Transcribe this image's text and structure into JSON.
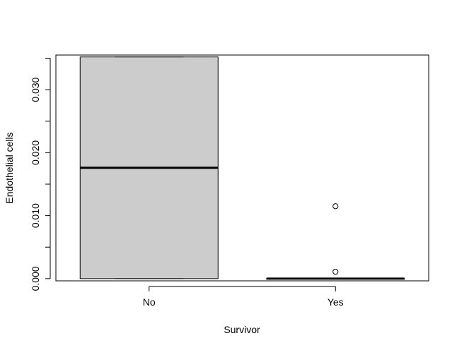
{
  "chart_data": {
    "type": "boxplot",
    "title": "",
    "xlabel": "Survivor",
    "ylabel": "Endothelial cells",
    "categories": [
      "No",
      "Yes"
    ],
    "ylim": [
      -0.00035,
      0.0355
    ],
    "yticks": [
      0.0,
      0.01,
      0.02,
      0.03
    ],
    "ytick_labels": [
      "0.000",
      "0.010",
      "0.020",
      "0.030"
    ],
    "grid": false,
    "box_fill": "#cccccc",
    "boxes": [
      {
        "category": "No",
        "min": 0.0,
        "q1": 0.0,
        "median": 0.0176,
        "q3": 0.0352,
        "max": 0.0352,
        "outliers": []
      },
      {
        "category": "Yes",
        "min": 0.0,
        "q1": 0.0,
        "median": 0.0,
        "q3": 0.0,
        "max": 0.0,
        "outliers": [
          0.0115,
          0.0011
        ]
      }
    ]
  }
}
